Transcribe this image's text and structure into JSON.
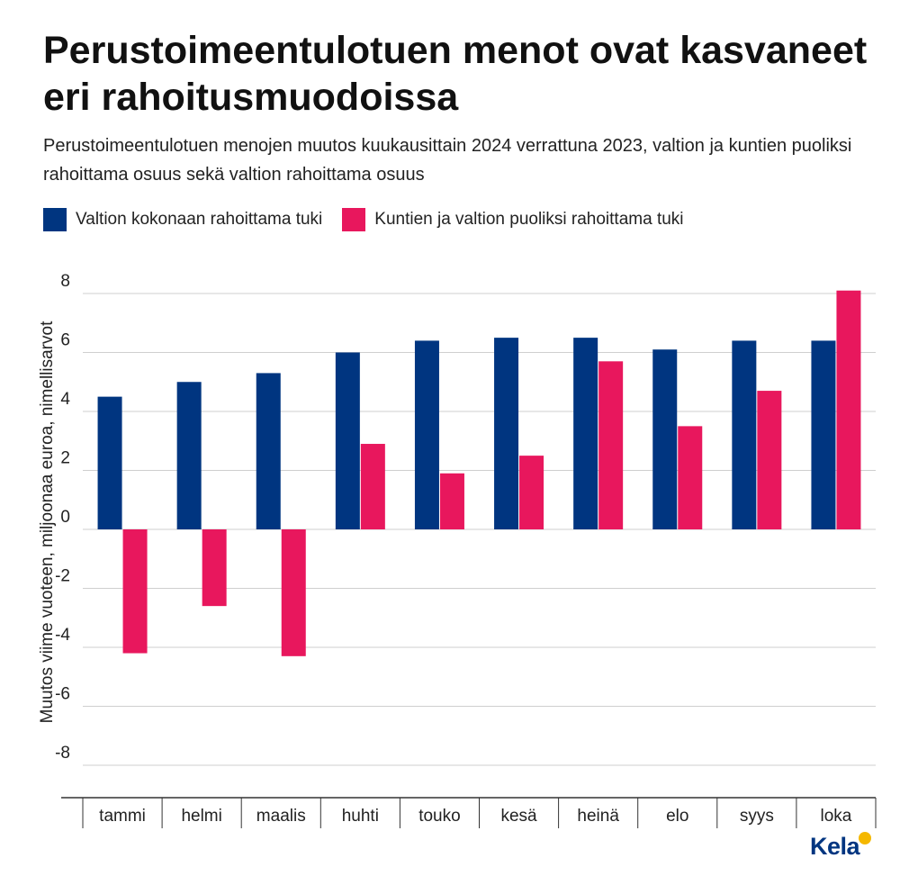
{
  "colors": {
    "series_blue": "#003580",
    "series_pink": "#e8175d",
    "grid": "#cfcfcf",
    "logo": "#003580",
    "logo_badge": "#f5b800"
  },
  "logo": {
    "text": "Kela",
    "badge_icon": "kela-badge-icon"
  },
  "chart_data": {
    "type": "bar",
    "title": "Perustoimeentulotuen menot ovat kasvaneet eri rahoitusmuodoissa",
    "subtitle": "Perustoimeentulotuen menojen muutos kuukausittain 2024 verrattuna 2023, valtion ja kuntien puoliksi rahoittama osuus sekä valtion rahoittama osuus",
    "xlabel": "",
    "ylabel": "Muutos viime vuoteen, miljoonaa euroa, nimellisarvot",
    "ylim": [
      -9,
      8.3
    ],
    "yticks": [
      8,
      6,
      4,
      2,
      0,
      -2,
      -4,
      -6,
      -8
    ],
    "ytick_labels": [
      "8",
      "6",
      "4",
      "2",
      "0",
      "-2",
      "-4",
      "-6",
      "-8"
    ],
    "grid": true,
    "legend_position": "top-left",
    "categories": [
      "tammi",
      "helmi",
      "maalis",
      "huhti",
      "touko",
      "kesä",
      "heinä",
      "elo",
      "syys",
      "loka"
    ],
    "series": [
      {
        "name": "Valtion kokonaan rahoittama tuki",
        "color": "#003580",
        "values": [
          4.5,
          5.0,
          5.3,
          6.0,
          6.4,
          6.5,
          6.5,
          6.1,
          6.4,
          6.4
        ]
      },
      {
        "name": "Kuntien ja valtion puoliksi rahoittama tuki",
        "color": "#e8175d",
        "values": [
          -4.2,
          -2.6,
          -4.3,
          2.9,
          1.9,
          2.5,
          5.7,
          3.5,
          4.7,
          8.1
        ]
      }
    ]
  }
}
